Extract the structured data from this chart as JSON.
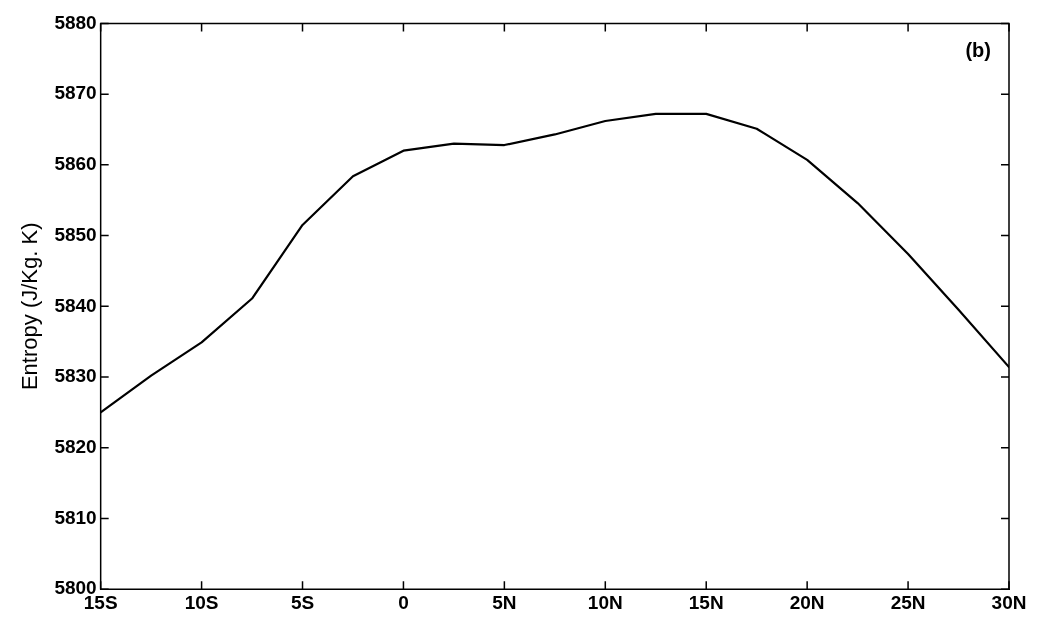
{
  "chart_data": {
    "type": "line",
    "ylabel": "Entropy (J/Kg. K)",
    "annotations": [
      "(b)"
    ],
    "x": [
      -15,
      -12.5,
      -10,
      -7.5,
      -5,
      -2.5,
      0,
      2.5,
      5,
      7.5,
      10,
      12.5,
      15,
      17.5,
      20,
      22.5,
      25,
      27.5,
      30
    ],
    "series": [
      {
        "color": "#000000",
        "values": [
          5825.0,
          5830.2,
          5834.9,
          5841.1,
          5851.5,
          5858.4,
          5862.0,
          5863.0,
          5862.8,
          5864.3,
          5866.2,
          5867.2,
          5867.2,
          5865.1,
          5860.7,
          5854.6,
          5847.4,
          5839.5,
          5831.4
        ]
      }
    ],
    "xlim": [
      -15,
      30
    ],
    "xticks": [
      {
        "value": -15,
        "label": "15S"
      },
      {
        "value": -10,
        "label": "10S"
      },
      {
        "value": -5,
        "label": "5S"
      },
      0,
      {
        "value": 5,
        "label": "5N"
      },
      {
        "value": 10,
        "label": "10N"
      },
      {
        "value": 15,
        "label": "15N"
      },
      {
        "value": 20,
        "label": "20N"
      },
      {
        "value": 25,
        "label": "25N"
      },
      {
        "value": 30,
        "label": "30N"
      }
    ],
    "ylim": [
      5800,
      5880
    ],
    "yticks": [
      5800,
      5810,
      5820,
      5830,
      5840,
      5850,
      5860,
      5870,
      5880
    ],
    "grid": false,
    "legend": false,
    "marker": "none",
    "line_style": "solid"
  }
}
